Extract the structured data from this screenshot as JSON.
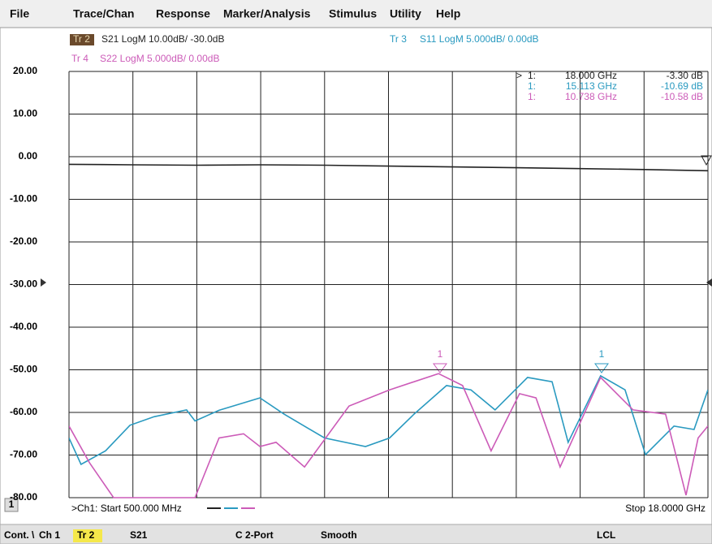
{
  "menu": {
    "items": [
      "File",
      "Trace/Chan",
      "Response",
      "Marker/Analysis",
      "Stimulus",
      "Utility",
      "Help"
    ]
  },
  "header": {
    "traces": [
      {
        "id": "Tr 2",
        "label": "S21 LogM 10.00dB/ -30.0dB"
      },
      {
        "id": "Tr 3",
        "label": "S11 LogM 5.000dB/ 0.00dB"
      },
      {
        "id": "Tr 4",
        "label": "S22 LogM 5.000dB/ 0.00dB"
      }
    ]
  },
  "markers": {
    "label": "1",
    "rows": [
      [
        ">",
        "1:",
        "18.000 GHz",
        "-3.30 dB"
      ],
      [
        "1:",
        "15.113 GHz",
        "-10.69 dB"
      ],
      [
        "1:",
        "10.738 GHz",
        "-10.58 dB"
      ]
    ]
  },
  "chart": {
    "type": "line",
    "xlim": [
      0.5,
      18
    ],
    "ylim": [
      -80,
      20
    ],
    "yticks": [
      {
        "value": 20,
        "label": "20.00"
      },
      {
        "value": 10,
        "label": "10.00"
      },
      {
        "value": 0,
        "label": "0.00"
      },
      {
        "value": -10,
        "label": "-10.00"
      },
      {
        "value": -20,
        "label": "-20.00"
      },
      {
        "value": -30,
        "label": "-30.00"
      },
      {
        "value": -40,
        "label": "-40.00"
      },
      {
        "value": -50,
        "label": "-50.00"
      },
      {
        "value": -60,
        "label": "-60.00"
      },
      {
        "value": -70,
        "label": "-70.00"
      },
      {
        "value": -80,
        "label": "-80.00"
      }
    ],
    "grid": true,
    "series": [
      {
        "color": "#222222",
        "x": [
          0.5,
          2.25,
          4,
          5.75,
          7.5,
          9.25,
          11,
          12.75,
          14.5,
          16.25,
          18
        ],
        "values": [
          -1.8,
          -1.9,
          -2.0,
          -1.9,
          -2.0,
          -2.2,
          -2.4,
          -2.6,
          -2.8,
          -3.0,
          -3.3
        ]
      },
      {
        "color": "#2a9ac0",
        "x": [
          0.5,
          0.83,
          1.5,
          2.17,
          2.83,
          3.72,
          3.95,
          4.61,
          5.73,
          6.39,
          7.5,
          8.62,
          9.28,
          9.95,
          10.84,
          11.51,
          12.17,
          13.06,
          13.73,
          14.17,
          15.06,
          15.73,
          16.29,
          17.07,
          17.62,
          18
        ],
        "values": [
          -66,
          -72.2,
          -69,
          -63,
          -61,
          -59.4,
          -62,
          -59.5,
          -56.6,
          -60.4,
          -66,
          -68,
          -66,
          -60.4,
          -53.7,
          -54.7,
          -59.4,
          -51.8,
          -52.8,
          -67,
          -51.4,
          -54.7,
          -69.9,
          -63.2,
          -64,
          -54.7
        ]
      },
      {
        "color": "#cc5bb8",
        "x": [
          0.5,
          1.06,
          1.72,
          3.95,
          4.61,
          5.28,
          5.73,
          6.17,
          6.95,
          8.17,
          9.28,
          10.62,
          11.28,
          12.06,
          12.84,
          13.29,
          13.95,
          15.06,
          15.95,
          16.84,
          17.4,
          17.73,
          18
        ],
        "values": [
          -63.2,
          -71.8,
          -80,
          -80,
          -66,
          -65,
          -68,
          -67,
          -72.8,
          -58.5,
          -54.7,
          -50.9,
          -53.7,
          -69,
          -55.6,
          -56.6,
          -72.8,
          -51.8,
          -59.4,
          -60.4,
          -79.4,
          -66,
          -63.2
        ]
      }
    ]
  },
  "footer": {
    "channel": "1",
    "start": ">Ch1: Start  500.000 MHz",
    "stop": "Stop 18.0000 GHz"
  },
  "status": [
    "Cont. \\",
    "Ch 1",
    "Tr 2",
    "S21",
    "C 2-Port",
    "Smooth",
    "LCL"
  ]
}
